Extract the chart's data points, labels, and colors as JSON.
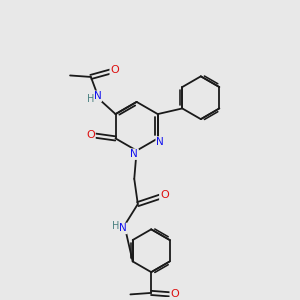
{
  "background_color": "#e8e8e8",
  "bond_color": "#1a1a1a",
  "atom_colors": {
    "C": "#1a1a1a",
    "N": "#1010ee",
    "O": "#dd1111",
    "H": "#4a8080"
  },
  "bond_width": 1.3,
  "figsize": [
    3.0,
    3.0
  ],
  "dpi": 100
}
